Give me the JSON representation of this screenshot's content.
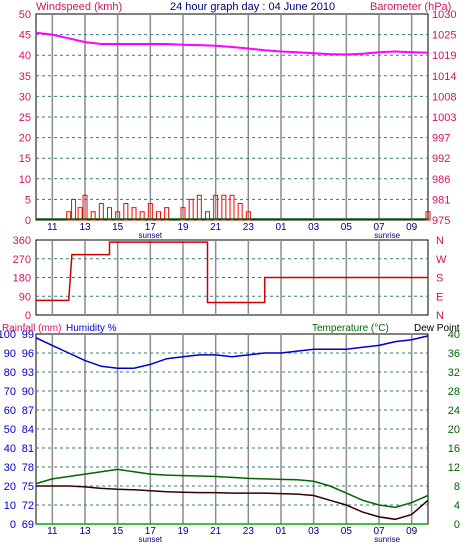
{
  "header": {
    "title": "24 hour graph day : 04 June 2010",
    "left_label": "Windspeed (kmh)",
    "right_label": "Barometer (hPa)"
  },
  "colors": {
    "frame": "#000000",
    "grid": "#7f7f7f",
    "axis_text": "#d4145a",
    "barometer": "#ff00ff",
    "wind": "#ff0000",
    "gust": "#0000cc",
    "direction": "#cc0000",
    "humidity": "#0000cc",
    "temperature": "#006600",
    "dewpoint": "#330000",
    "rainfall": "#00aa00",
    "temp_axis_text": "#006600"
  },
  "time_ticks": [
    "11",
    "13",
    "15",
    "17",
    "19",
    "21",
    "23",
    "01",
    "03",
    "05",
    "07",
    "09"
  ],
  "time_note_labels": {
    "sunset": "sunset",
    "sunrise": "sunrise"
  },
  "panels": {
    "wind": {
      "left_ticks": [
        "50",
        "45",
        "40",
        "35",
        "30",
        "25",
        "20",
        "15",
        "10",
        "5",
        "0"
      ],
      "right_ticks": [
        "1030",
        "1025",
        "1019",
        "1014",
        "1008",
        "1003",
        "997",
        "992",
        "986",
        "981",
        "975"
      ]
    },
    "direction": {
      "left_ticks": [
        "360",
        "270",
        "180",
        "90",
        "0"
      ],
      "right_ticks": [
        "N",
        "W",
        "S",
        "E",
        "N"
      ]
    },
    "temp": {
      "title_rain": "Rainfall (mm)",
      "title_hum": "Humidity %",
      "title_temp": "Temperature (°C)",
      "title_dew": "Dew Point",
      "left_ticks": [
        "100",
        "90",
        "80",
        "70",
        "60",
        "50",
        "40",
        "30",
        "20",
        "10",
        "0"
      ],
      "left_ticks_b": [
        "99",
        "96",
        "93",
        "90",
        "87",
        "84",
        "81",
        "78",
        "75",
        "72",
        "69"
      ],
      "right_ticks": [
        "40",
        "36",
        "32",
        "28",
        "24",
        "20",
        "16",
        "12",
        "8",
        "4",
        "0"
      ]
    }
  },
  "chart_data": [
    {
      "type": "line",
      "title": "24 hour graph day : 04 June 2010",
      "x_unit": "hours from 10:00",
      "series": [
        {
          "name": "Barometer (hPa)",
          "axis": "right",
          "ylim": [
            975,
            1030
          ],
          "x": [
            0,
            1,
            2,
            3,
            4,
            5,
            6,
            7,
            8,
            9,
            10,
            11,
            12,
            13,
            14,
            15,
            16,
            17,
            18,
            19,
            20,
            21,
            22,
            23,
            24
          ],
          "values": [
            1025,
            1024.5,
            1023.5,
            1022.5,
            1022,
            1022,
            1022,
            1022,
            1022,
            1021.8,
            1021.7,
            1021.5,
            1021.2,
            1020.8,
            1020.3,
            1020,
            1019.8,
            1019.5,
            1019.3,
            1019.2,
            1019.4,
            1019.8,
            1020,
            1019.8,
            1019.7
          ]
        },
        {
          "name": "Windspeed (kmh)",
          "axis": "left",
          "ylim": [
            0,
            50
          ],
          "x": [
            2,
            2.3,
            2.7,
            3,
            3.5,
            4,
            4.5,
            5,
            5.5,
            6,
            6.5,
            7,
            7.5,
            8,
            9,
            9.5,
            10,
            10.5,
            11,
            11.5,
            12,
            12.5,
            13,
            24
          ],
          "values": [
            2,
            5,
            3,
            6,
            2,
            4,
            3,
            2,
            4,
            3,
            2,
            4,
            2,
            3,
            3,
            5,
            6,
            2,
            6,
            6,
            6,
            4,
            2,
            2
          ]
        }
      ]
    },
    {
      "type": "line",
      "series": [
        {
          "name": "Wind direction",
          "ylim": [
            0,
            360
          ],
          "x": [
            0,
            2,
            2.2,
            4.5,
            4.5,
            10.5,
            10.5,
            14,
            14,
            24
          ],
          "values": [
            70,
            70,
            290,
            290,
            350,
            350,
            60,
            60,
            180,
            180
          ]
        }
      ]
    },
    {
      "type": "line",
      "series": [
        {
          "name": "Humidity %",
          "axis": "left",
          "ylim": [
            0,
            100
          ],
          "x": [
            0,
            1,
            2,
            3,
            4,
            5,
            6,
            7,
            8,
            9,
            10,
            11,
            12,
            13,
            14,
            15,
            16,
            17,
            18,
            19,
            20,
            21,
            22,
            23,
            24
          ],
          "values": [
            98,
            94,
            90,
            86,
            83,
            82,
            82,
            84,
            87,
            88,
            89,
            89,
            88,
            89,
            90,
            90,
            91,
            92,
            92,
            92,
            93,
            94,
            96,
            97,
            99
          ]
        },
        {
          "name": "Temperature (°C)",
          "axis": "right",
          "ylim": [
            0,
            40
          ],
          "x": [
            0,
            1,
            2,
            3,
            4,
            5,
            6,
            7,
            8,
            9,
            10,
            11,
            12,
            13,
            14,
            15,
            16,
            17,
            18,
            19,
            20,
            21,
            22,
            23,
            24
          ],
          "values": [
            8.5,
            9.5,
            10,
            10.5,
            11,
            11.5,
            11,
            10.5,
            10.3,
            10.2,
            10.1,
            10,
            9.8,
            9.6,
            9.5,
            9.4,
            9.3,
            9,
            8,
            6.5,
            5,
            4,
            3.5,
            4.5,
            6
          ]
        },
        {
          "name": "Dew Point",
          "axis": "right",
          "ylim": [
            0,
            40
          ],
          "x": [
            0,
            1,
            2,
            3,
            4,
            5,
            6,
            7,
            8,
            9,
            10,
            11,
            12,
            13,
            14,
            15,
            16,
            17,
            18,
            19,
            20,
            21,
            22,
            23,
            24
          ],
          "values": [
            8,
            8,
            8,
            7.8,
            7.5,
            7.3,
            7.2,
            7,
            6.8,
            6.7,
            6.6,
            6.6,
            6.5,
            6.5,
            6.5,
            6.4,
            6.3,
            6,
            5,
            4,
            2.5,
            1.5,
            1,
            2,
            5
          ]
        },
        {
          "name": "Rainfall (mm)",
          "axis": "left",
          "ylim": [
            0,
            100
          ],
          "x": [
            0,
            24
          ],
          "values": [
            0,
            0
          ]
        }
      ]
    }
  ]
}
